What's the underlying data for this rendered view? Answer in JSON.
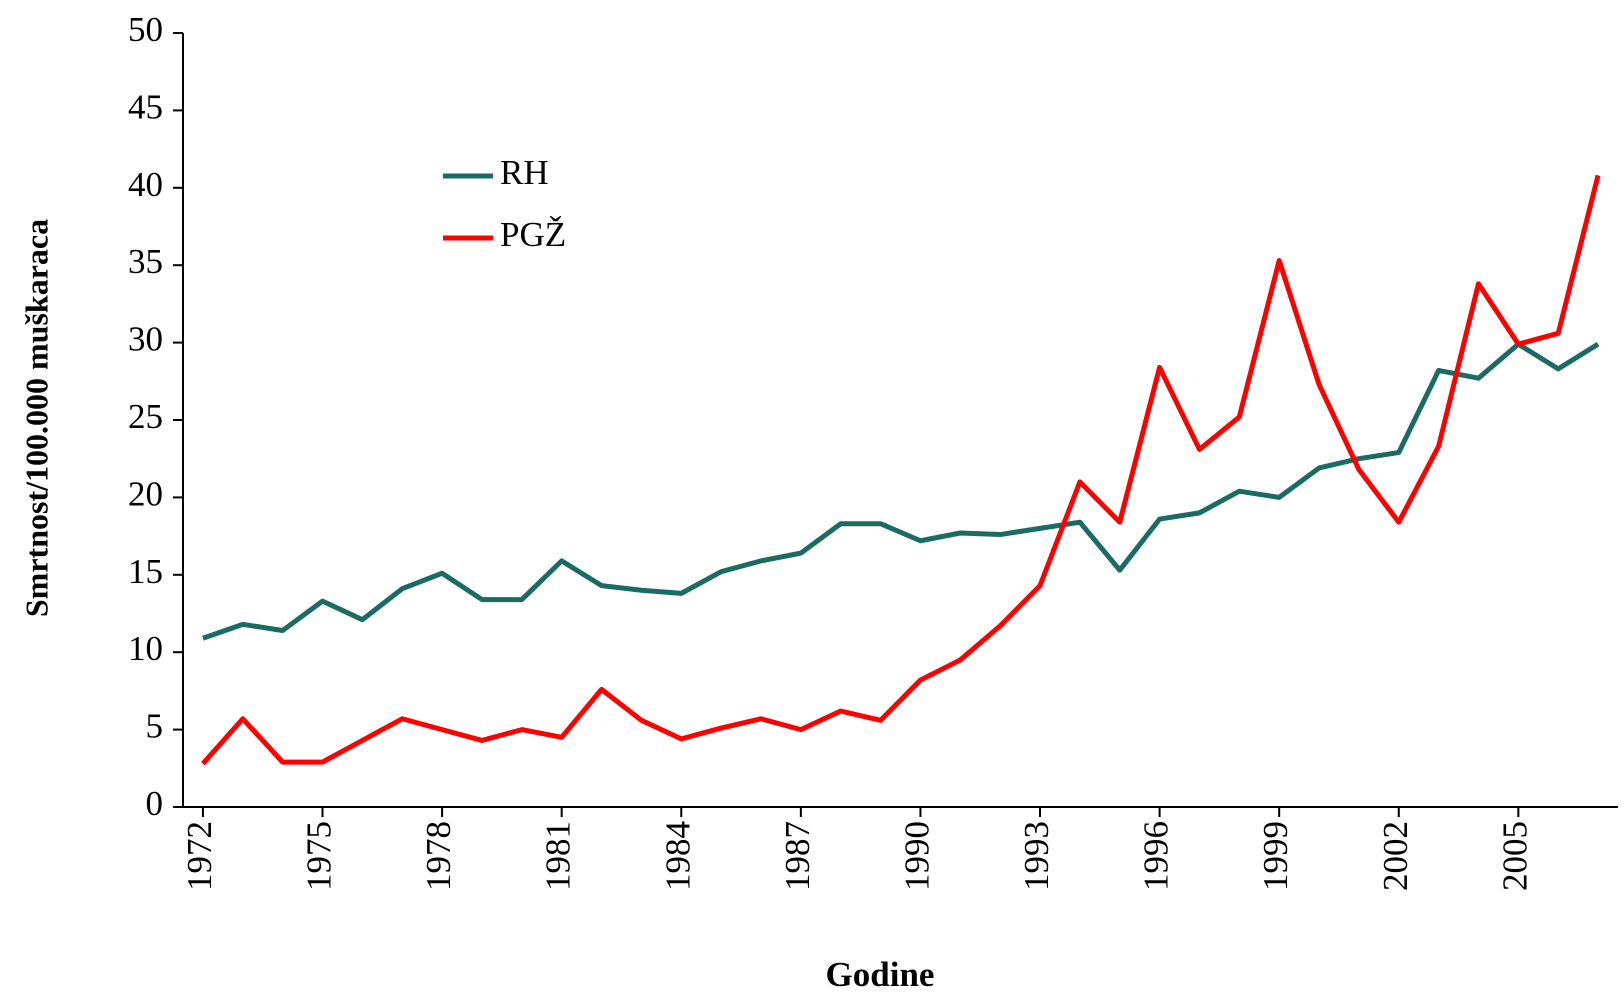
{
  "chart_data": {
    "type": "line",
    "x_label": "Godine",
    "y_label": "Smrtnost/100.000 muškaraca",
    "x": [
      1972,
      1973,
      1974,
      1975,
      1976,
      1977,
      1978,
      1979,
      1980,
      1981,
      1982,
      1983,
      1984,
      1985,
      1986,
      1987,
      1988,
      1989,
      1990,
      1991,
      1992,
      1993,
      1994,
      1995,
      1996,
      1997,
      1998,
      1999,
      2000,
      2001,
      2002,
      2003,
      2004,
      2005,
      2006,
      2007
    ],
    "series": [
      {
        "name": "RH",
        "color": "#1a6b62",
        "values": [
          10.9,
          11.8,
          11.4,
          13.3,
          12.1,
          14.1,
          15.1,
          13.4,
          13.4,
          15.9,
          14.3,
          14.0,
          13.8,
          15.2,
          15.9,
          16.4,
          18.3,
          18.3,
          17.2,
          17.7,
          17.6,
          18.0,
          18.4,
          15.3,
          18.6,
          19.0,
          20.4,
          20.0,
          21.9,
          22.5,
          22.9,
          28.2,
          27.7,
          29.9,
          28.3,
          29.9
        ]
      },
      {
        "name": "PGŽ",
        "color": "#ff0000",
        "values": [
          2.8,
          5.7,
          2.9,
          2.9,
          4.3,
          5.7,
          5.0,
          4.3,
          5.0,
          4.5,
          7.6,
          5.6,
          4.4,
          5.1,
          5.7,
          5.0,
          6.2,
          5.6,
          8.2,
          9.5,
          11.7,
          14.3,
          21.0,
          18.4,
          28.4,
          23.1,
          25.2,
          35.3,
          27.3,
          21.8,
          18.4,
          23.3,
          33.8,
          29.9,
          30.6,
          40.8
        ]
      }
    ],
    "xlim": [
      1971.5,
      2007.5
    ],
    "xticks": [
      1972,
      1975,
      1978,
      1981,
      1984,
      1987,
      1990,
      1993,
      1996,
      1999,
      2002,
      2005
    ],
    "ylim": [
      0,
      50
    ],
    "yticks": [
      0,
      5,
      10,
      15,
      20,
      25,
      30,
      35,
      40,
      45,
      50
    ],
    "grid": false,
    "legend": "upper left"
  }
}
